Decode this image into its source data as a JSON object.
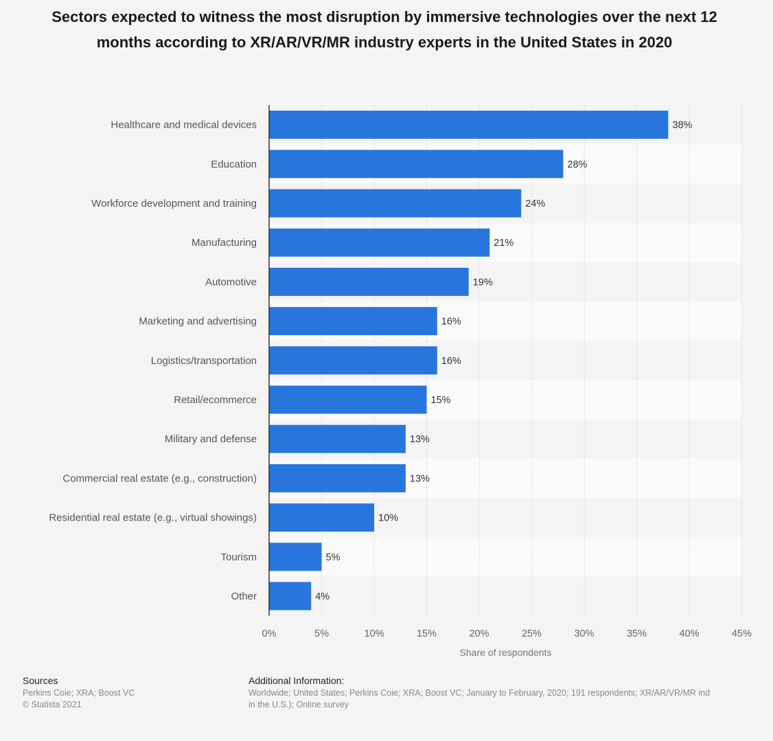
{
  "chart_data": {
    "type": "bar",
    "orientation": "horizontal",
    "title": "Sectors expected to witness the most disruption by immersive technologies over the next 12 months according to XR/AR/VR/MR industry experts in the United States in 2020",
    "categories": [
      "Healthcare and medical devices",
      "Education",
      "Workforce development and training",
      "Manufacturing",
      "Automotive",
      "Marketing and advertising",
      "Logistics/transportation",
      "Retail/ecommerce",
      "Military and defense",
      "Commercial real estate (e.g., construction)",
      "Residential real estate (e.g., virtual showings)",
      "Tourism",
      "Other"
    ],
    "values": [
      38,
      28,
      24,
      21,
      19,
      16,
      16,
      15,
      13,
      13,
      10,
      5,
      4
    ],
    "value_labels": [
      "38%",
      "28%",
      "24%",
      "21%",
      "19%",
      "16%",
      "16%",
      "15%",
      "13%",
      "13%",
      "10%",
      "5%",
      "4%"
    ],
    "xlabel": "Share of respondents",
    "ylabel": "",
    "xlim": [
      0,
      45
    ],
    "x_ticks": [
      0,
      5,
      10,
      15,
      20,
      25,
      30,
      35,
      40,
      45
    ],
    "x_tick_labels": [
      "0%",
      "5%",
      "10%",
      "15%",
      "20%",
      "25%",
      "30%",
      "35%",
      "40%",
      "45%"
    ],
    "grid": true,
    "bar_color": "#2876dd"
  },
  "footer": {
    "sources_heading": "Sources",
    "sources_line1": "Perkins Coie; XRA; Boost VC",
    "sources_line2": "© Statista 2021",
    "additional_heading": "Additional Information:",
    "additional_line1": "Worldwide; United States; Perkins Coie; XRA; Boost VC; January to February, 2020; 191 respondents; XR/AR/VR/MR ind",
    "additional_line2": "in the U.S.); Online survey"
  }
}
